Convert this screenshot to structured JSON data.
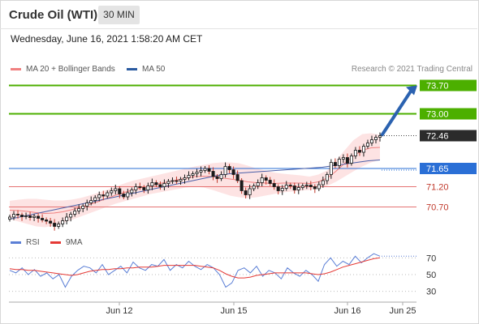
{
  "header": {
    "title": "Crude Oil (WTI)",
    "timeframe": "30 MIN"
  },
  "subtitle": "Wednesday, June 16, 2021 1:58:20 AM CET",
  "legend": {
    "bb_label": "MA 20 + Bollinger Bands",
    "ma50_label": "MA 50",
    "credit": "Research © 2021 Trading Central"
  },
  "rsi_legend": {
    "rsi_label": "RSI",
    "ma_label": "9MA"
  },
  "colors": {
    "up": "#1a1a1a",
    "down": "#c0392b",
    "resistance": "#4caf00",
    "support": "#2a6fd6",
    "level": "#e57373",
    "band": "#fde3e3",
    "ma20": "#f08080",
    "ma50": "#4a5fa8",
    "rsi": "#5b7fd6",
    "rsi_ma": "#e53935",
    "arrow": "#2b62b0"
  },
  "chart_data": [
    {
      "type": "candlestick",
      "title": "Crude Oil (WTI)",
      "x_ticks": [
        "Jun 12",
        "Jun 15",
        "Jun 16",
        "Jun 25"
      ],
      "ylim": [
        70.15,
        73.85
      ],
      "current_price": "72.46",
      "levels": [
        {
          "value": 73.7,
          "label": "73.70",
          "kind": "resistance"
        },
        {
          "value": 73.0,
          "label": "73.00",
          "kind": "resistance"
        },
        {
          "value": 71.65,
          "label": "71.65",
          "kind": "pivot"
        },
        {
          "value": 71.2,
          "label": "71.20",
          "kind": "support"
        },
        {
          "value": 70.7,
          "label": "70.70",
          "kind": "support"
        }
      ],
      "close_series": [
        70.45,
        70.52,
        70.5,
        70.46,
        70.48,
        70.44,
        70.47,
        70.42,
        70.38,
        70.35,
        70.3,
        70.22,
        70.28,
        70.36,
        70.45,
        70.52,
        70.6,
        70.66,
        70.72,
        70.8,
        70.86,
        70.93,
        71.0,
        70.97,
        71.05,
        71.1,
        71.15,
        71.02,
        70.95,
        71.05,
        71.12,
        71.2,
        71.18,
        71.12,
        71.22,
        71.3,
        71.25,
        71.2,
        71.28,
        71.33,
        71.35,
        71.34,
        71.38,
        71.42,
        71.48,
        71.52,
        71.56,
        71.6,
        71.65,
        71.58,
        71.45,
        71.4,
        71.5,
        71.7,
        71.62,
        71.5,
        71.35,
        71.1,
        71.0,
        71.15,
        71.22,
        71.3,
        71.42,
        71.36,
        71.28,
        71.2,
        71.1,
        71.16,
        71.24,
        71.22,
        71.12,
        71.18,
        71.22,
        71.24,
        71.2,
        71.15,
        71.25,
        71.35,
        71.5,
        71.8,
        71.72,
        71.88,
        71.92,
        71.78,
        71.96,
        72.1,
        72.05,
        72.2,
        72.28,
        72.36,
        72.42,
        72.46
      ],
      "bollinger": {
        "upper": [
          70.85,
          70.88,
          70.9,
          70.9,
          70.88,
          70.86,
          70.86,
          70.88,
          70.92,
          70.98,
          71.05,
          71.12,
          71.2,
          71.28,
          71.35,
          71.4,
          71.45,
          71.5,
          71.55,
          71.6,
          71.65,
          71.7,
          71.74,
          71.78,
          71.8,
          71.8,
          71.78,
          71.72,
          71.65,
          71.6,
          71.55,
          71.52,
          71.5,
          71.48,
          71.45,
          71.5,
          71.6,
          71.85,
          72.1,
          72.35,
          72.5,
          72.52,
          72.48
        ],
        "lower": [
          70.4,
          70.34,
          70.28,
          70.22,
          70.2,
          70.24,
          70.3,
          70.38,
          70.46,
          70.54,
          70.62,
          70.7,
          70.78,
          70.84,
          70.9,
          70.96,
          71.02,
          71.06,
          71.1,
          71.14,
          71.18,
          71.2,
          71.18,
          71.12,
          71.05,
          70.98,
          70.94,
          70.92,
          70.94,
          70.98,
          71.02,
          71.06,
          71.08,
          71.1,
          71.12,
          71.15,
          71.22,
          71.32,
          71.45,
          71.58,
          71.7,
          71.8,
          71.86
        ]
      },
      "ma20": [
        70.62,
        70.61,
        70.59,
        70.56,
        70.54,
        70.55,
        70.58,
        70.63,
        70.69,
        70.76,
        70.83,
        70.91,
        70.99,
        71.06,
        71.12,
        71.18,
        71.23,
        71.28,
        71.32,
        71.37,
        71.41,
        71.45,
        71.46,
        71.45,
        71.42,
        71.39,
        71.36,
        71.32,
        71.3,
        71.29,
        71.28,
        71.29,
        71.29,
        71.29,
        71.28,
        71.32,
        71.41,
        71.58,
        71.78,
        71.96,
        72.1,
        72.16,
        72.17
      ],
      "ma50": [
        70.4,
        70.46,
        70.52,
        70.58,
        70.64,
        70.7,
        70.76,
        70.82,
        70.88,
        70.94,
        71.0,
        71.06,
        71.12,
        71.18,
        71.24,
        71.3,
        71.36,
        71.42,
        71.48,
        71.52,
        71.54,
        71.56,
        71.58,
        71.6,
        71.62,
        71.64,
        71.66,
        71.68,
        71.72,
        71.76,
        71.8,
        71.84,
        71.86
      ],
      "forecast": {
        "from": 72.46,
        "to": 73.7
      }
    },
    {
      "type": "line",
      "title": "RSI",
      "y_ticks": [
        70,
        50,
        30
      ],
      "ylim": [
        20,
        80
      ],
      "series": [
        {
          "name": "RSI",
          "values": [
            55,
            52,
            58,
            50,
            56,
            48,
            52,
            45,
            50,
            35,
            48,
            55,
            60,
            58,
            52,
            62,
            50,
            55,
            60,
            52,
            65,
            58,
            55,
            62,
            60,
            68,
            55,
            62,
            58,
            66,
            60,
            56,
            62,
            58,
            50,
            35,
            40,
            55,
            58,
            52,
            60,
            48,
            55,
            52,
            45,
            58,
            52,
            48,
            55,
            50,
            42,
            62,
            70,
            60,
            66,
            62,
            72,
            64,
            70,
            75,
            72
          ]
        },
        {
          "name": "9MA",
          "values": [
            57,
            56,
            56,
            55,
            55,
            54,
            53,
            52,
            51,
            50,
            49,
            50,
            52,
            54,
            55,
            56,
            56,
            57,
            57,
            58,
            58,
            59,
            59,
            59,
            60,
            61,
            61,
            61,
            61,
            61,
            61,
            60,
            59,
            58,
            55,
            51,
            48,
            46,
            46,
            47,
            49,
            50,
            51,
            52,
            52,
            52,
            52,
            52,
            52,
            51,
            50,
            51,
            53,
            56,
            59,
            61,
            63,
            65,
            67,
            69,
            70
          ]
        }
      ]
    }
  ]
}
